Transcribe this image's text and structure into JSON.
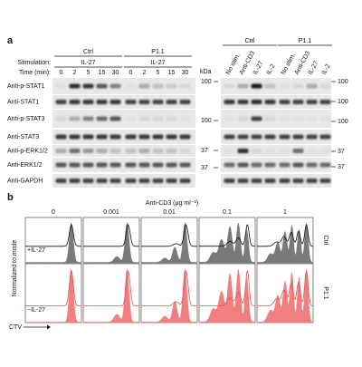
{
  "panel_a": {
    "label": "a",
    "stimulation_label": "Stimulation:",
    "time_label": "Time (min):",
    "kda_label": "kDa",
    "left_groups": [
      {
        "name": "Ctrl",
        "stimulation": "IL-27",
        "times": [
          "0",
          "2",
          "5",
          "15",
          "30"
        ]
      },
      {
        "name": "P1.1",
        "stimulation": "IL-27",
        "times": [
          "0",
          "2",
          "5",
          "15",
          "30"
        ]
      }
    ],
    "right_groups": [
      {
        "name": "Ctrl",
        "lanes": [
          "No stim.",
          "Anti-CD3",
          "IL-27",
          "IL-2"
        ]
      },
      {
        "name": "P1.1",
        "lanes": [
          "No stim.",
          "Anti-CD3",
          "IL-27",
          "IL-2"
        ]
      }
    ],
    "rows": [
      "Anti-p-STAT1",
      "Anti-STAT1",
      "Anti-p-STAT3",
      "Anti-STAT3",
      "Anti-p-ERK1/2",
      "Anti-ERK1/2",
      "Anti-GAPDH"
    ],
    "left_markers": [
      "100",
      "100",
      "37",
      "37"
    ],
    "right_markers": [
      "100",
      "100",
      "100",
      "37",
      "37"
    ]
  },
  "panel_b": {
    "label": "b",
    "title": "Anti-CD3 (μg ml⁻¹)",
    "columns": [
      "0",
      "0.001",
      "0.01",
      "0.1",
      "1"
    ],
    "rows": [
      {
        "name": "Ctrl",
        "condition": "+IL-27"
      },
      {
        "name": "P1.1",
        "condition": "−IL-27"
      }
    ],
    "y_label": "Normalized to mode",
    "x_label": "CTV"
  }
}
